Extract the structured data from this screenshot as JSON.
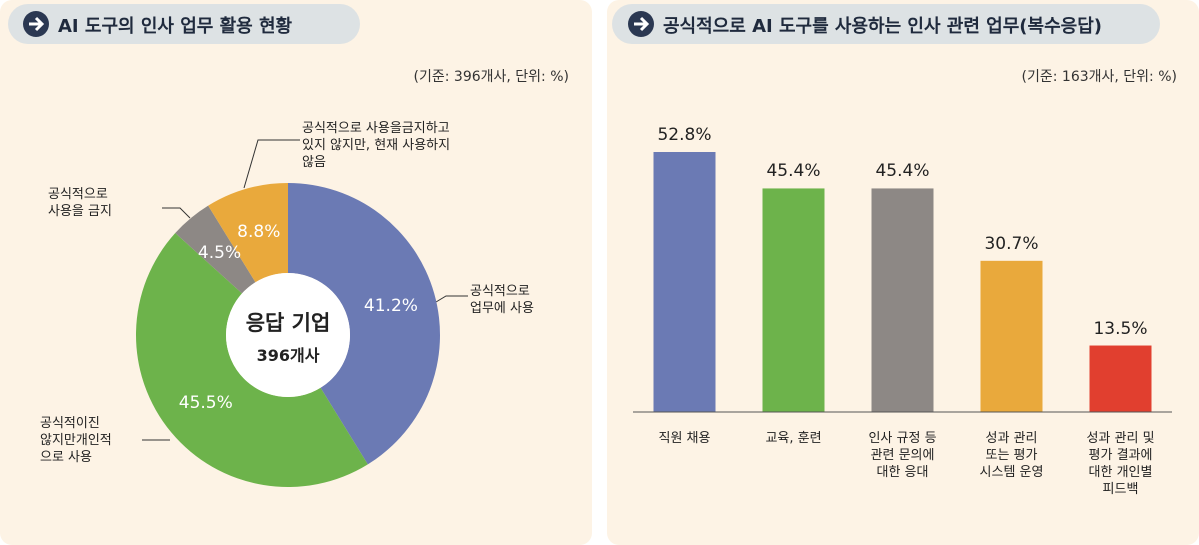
{
  "chart_data": [
    {
      "type": "donut",
      "title": "AI 도구의 인사 업무 활용 현황",
      "note": "(기준: 396개사, 단위: %)",
      "center_label": "응답 기업",
      "center_sublabel": "396개사",
      "categories": [
        "공식적으로\n업무에 사용",
        "공식적이진\n않지만개인적\n으로 사용",
        "공식적으로\n사용을 금지",
        "공식적으로 사용을금지하고\n있지 않지만, 현재 사용하지\n않음"
      ],
      "values": [
        41.2,
        45.5,
        4.5,
        8.8
      ],
      "value_labels": [
        "41.2%",
        "45.5%",
        "4.5%",
        "8.8%"
      ],
      "colors": [
        "#6b7ab4",
        "#6db34b",
        "#8d8885",
        "#e9a93c"
      ]
    },
    {
      "type": "bar",
      "title": "공식적으로 AI 도구를 사용하는 인사 관련 업무(복수응답)",
      "note": "(기준: 163개사, 단위: %)",
      "categories": [
        "직원 채용",
        "교육, 훈련",
        "인사 규정 등\n관련 문의에\n대한 응대",
        "성과 관리\n또는 평가\n시스템 운영",
        "성과 관리 및\n평가 결과에\n대한 개인별\n피드백"
      ],
      "values": [
        52.8,
        45.4,
        45.4,
        30.7,
        13.5
      ],
      "value_labels": [
        "52.8%",
        "45.4%",
        "45.4%",
        "30.7%",
        "13.5%"
      ],
      "colors": [
        "#6b7ab4",
        "#6db34b",
        "#8d8885",
        "#e9a93c",
        "#e13f2f"
      ]
    }
  ]
}
